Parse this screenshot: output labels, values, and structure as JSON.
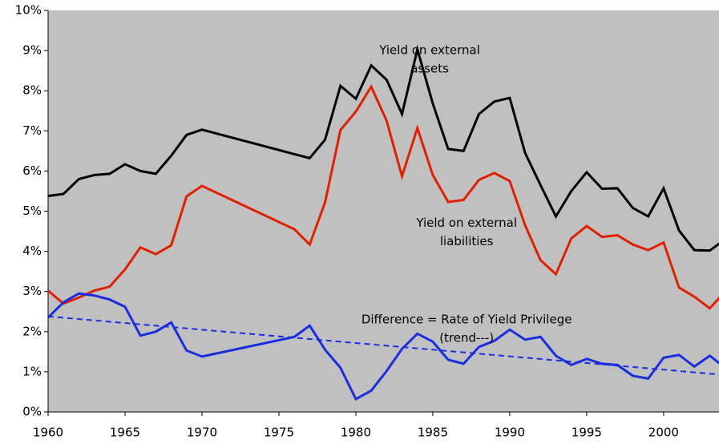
{
  "chart_data": {
    "type": "line",
    "x": [
      1960,
      1961,
      1962,
      1963,
      1964,
      1965,
      1966,
      1967,
      1968,
      1969,
      1970,
      1976,
      1977,
      1978,
      1979,
      1980,
      1981,
      1982,
      1983,
      1984,
      1985,
      1986,
      1987,
      1988,
      1989,
      1990,
      1991,
      1992,
      1993,
      1994,
      1995,
      1996,
      1997,
      1998,
      1999,
      2000,
      2001,
      2002,
      2003,
      2004
    ],
    "series": [
      {
        "name": "Yield on external assets",
        "color": "#000000",
        "values": [
          5.38,
          5.43,
          5.8,
          5.9,
          5.93,
          6.17,
          6.0,
          5.93,
          6.38,
          6.9,
          7.03,
          6.42,
          6.32,
          6.78,
          8.12,
          7.8,
          8.63,
          8.27,
          7.42,
          9.03,
          7.68,
          6.55,
          6.5,
          7.42,
          7.73,
          7.82,
          6.45,
          5.65,
          4.87,
          5.5,
          5.97,
          5.56,
          5.57,
          5.08,
          4.87,
          5.57,
          4.52,
          4.03,
          4.02,
          4.3
        ]
      },
      {
        "name": "Yield on external liabilities",
        "color": "#e02000",
        "values": [
          3.02,
          2.7,
          2.85,
          3.02,
          3.12,
          3.55,
          4.1,
          3.93,
          4.15,
          5.37,
          5.63,
          4.55,
          4.17,
          5.22,
          7.02,
          7.48,
          8.1,
          7.25,
          5.87,
          7.07,
          5.9,
          5.23,
          5.28,
          5.78,
          5.95,
          5.75,
          4.65,
          3.78,
          3.43,
          4.32,
          4.63,
          4.36,
          4.4,
          4.17,
          4.03,
          4.22,
          3.1,
          2.87,
          2.58,
          3.0
        ]
      },
      {
        "name": "Difference = Rate of Yield Privilege",
        "color": "#1a2ee0",
        "values": [
          2.35,
          2.73,
          2.95,
          2.9,
          2.8,
          2.62,
          1.9,
          2.0,
          2.23,
          1.53,
          1.38,
          1.87,
          2.15,
          1.55,
          1.1,
          0.32,
          0.53,
          1.02,
          1.57,
          1.95,
          1.75,
          1.3,
          1.2,
          1.62,
          1.77,
          2.05,
          1.8,
          1.87,
          1.4,
          1.17,
          1.32,
          1.2,
          1.17,
          0.9,
          0.83,
          1.35,
          1.42,
          1.13,
          1.4,
          1.1
        ]
      },
      {
        "name": "trend",
        "color": "#1a2ee0",
        "dashed": true,
        "x": [
          1960,
          2004
        ],
        "values": [
          2.38,
          0.92
        ]
      }
    ],
    "annotations": [
      {
        "lines": [
          "Yield on external",
          "assets"
        ],
        "x": 1984.8,
        "y": 9.0
      },
      {
        "lines": [
          "Yield on external",
          "liabilities"
        ],
        "x": 1987.2,
        "y": 4.7
      },
      {
        "lines": [
          "Difference = Rate of Yield Privilege",
          "(trend---)"
        ],
        "x": 1987.2,
        "y": 2.3
      }
    ],
    "xlim": [
      1960,
      2003.6
    ],
    "xticks": [
      1960,
      1965,
      1970,
      1975,
      1980,
      1985,
      1990,
      1995,
      2000
    ],
    "ylim": [
      0,
      10
    ],
    "yticks": [
      {
        "value": 0,
        "label": "0%"
      },
      {
        "value": 1,
        "label": "1%"
      },
      {
        "value": 2,
        "label": "2%"
      },
      {
        "value": 3,
        "label": "3%"
      },
      {
        "value": 4,
        "label": "4%"
      },
      {
        "value": 5,
        "label": "5%"
      },
      {
        "value": 6,
        "label": "6%"
      },
      {
        "value": 7,
        "label": "7%"
      },
      {
        "value": 8,
        "label": "8%"
      },
      {
        "value": 9,
        "label": "9%"
      },
      {
        "value": 10,
        "label": "10%"
      }
    ],
    "background": "#c0c0c0"
  }
}
